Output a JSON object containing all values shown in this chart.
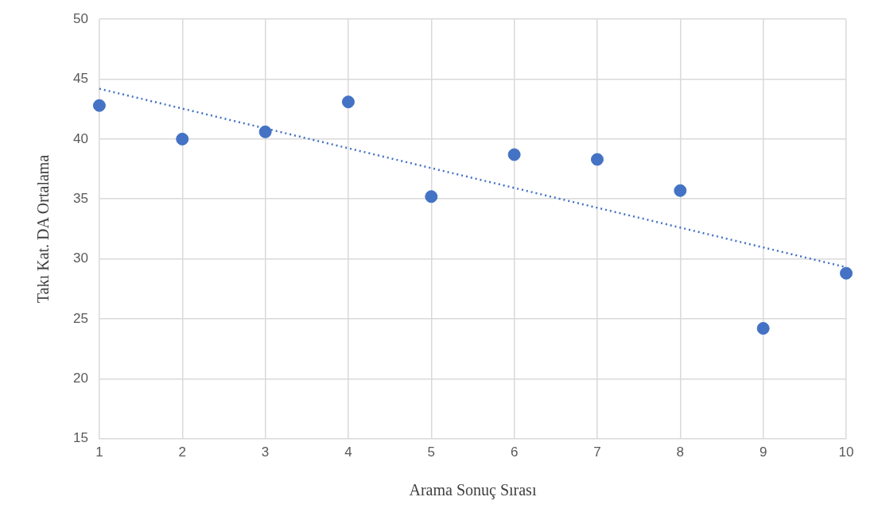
{
  "chart_data": {
    "type": "scatter",
    "xlabel": "Arama Sonuç Sırası",
    "ylabel": "Takı Kat. DA Ortalama",
    "series": [
      {
        "type": "scatter",
        "color": "#4472c4",
        "x": [
          1,
          2,
          3,
          4,
          5,
          6,
          7,
          8,
          9,
          10
        ],
        "values": [
          42.8,
          40.0,
          40.6,
          43.1,
          35.2,
          38.7,
          38.3,
          35.7,
          24.2,
          28.8
        ]
      },
      {
        "type": "line",
        "color": "#4472c4",
        "line_style": "dotted",
        "marker": "none",
        "x": [
          1,
          10
        ],
        "values": [
          44.2,
          29.3
        ]
      }
    ],
    "xlim": [
      1,
      10
    ],
    "xticks": [
      1,
      2,
      3,
      4,
      5,
      6,
      7,
      8,
      9,
      10
    ],
    "ylim": [
      15,
      50
    ],
    "yticks": [
      15,
      20,
      25,
      30,
      35,
      40,
      45,
      50
    ],
    "grid": true,
    "legend": false,
    "marker": "circle"
  }
}
